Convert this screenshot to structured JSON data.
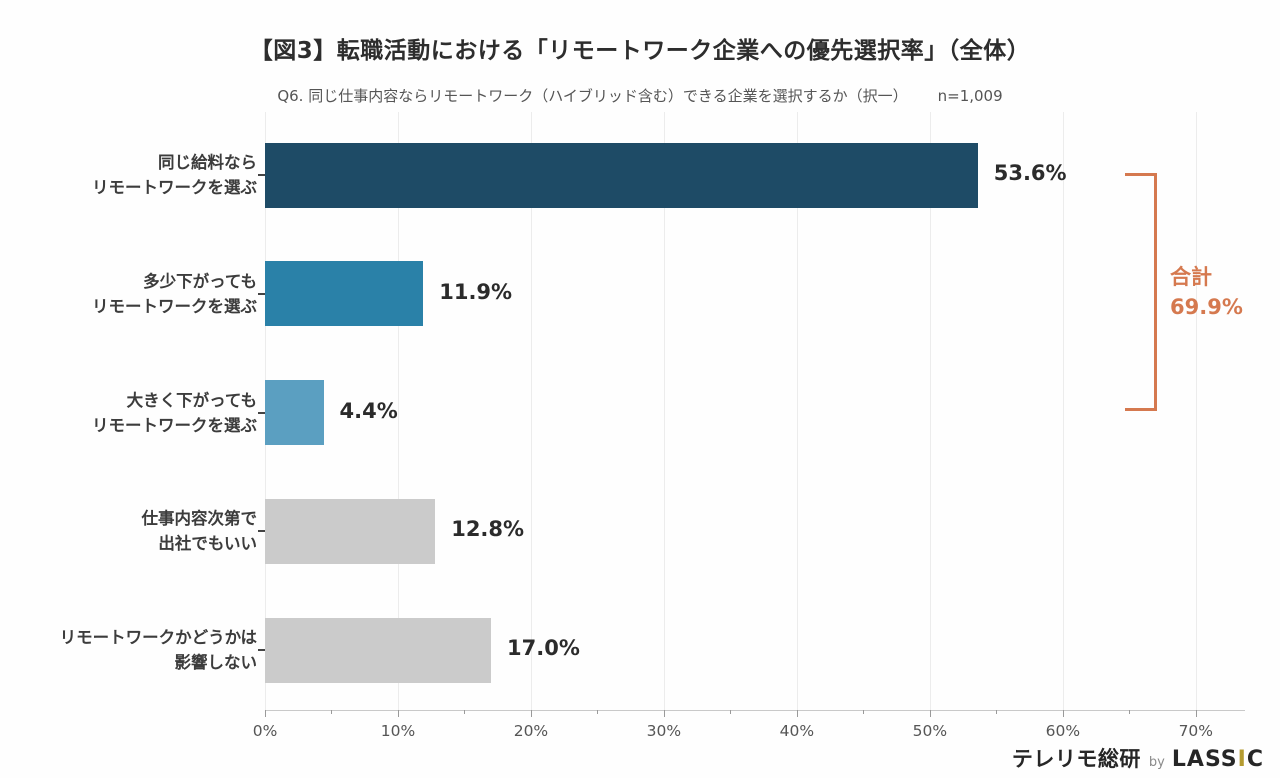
{
  "header": {
    "title": "【図3】転職活動における「リモートワーク企業への優先選択率」（全体）",
    "subtitle": "Q6. 同じ仕事内容ならリモートワーク（ハイブリッド含む）できる企業を選択するか（択一）",
    "sample_size": "n=1,009"
  },
  "chart_data": {
    "type": "bar",
    "orientation": "horizontal",
    "categories": [
      [
        "同じ給料なら",
        "リモートワークを選ぶ"
      ],
      [
        "多少下がっても",
        "リモートワークを選ぶ"
      ],
      [
        "大きく下がっても",
        "リモートワークを選ぶ"
      ],
      [
        "仕事内容次第で",
        "出社でもいい"
      ],
      [
        "リモートワークかどうかは",
        "影響しない"
      ]
    ],
    "values": [
      53.6,
      11.9,
      4.4,
      12.8,
      17.0
    ],
    "value_labels": [
      "53.6%",
      "11.9%",
      "4.4%",
      "12.8%",
      "17.0%"
    ],
    "bar_colors": [
      "#1e4b66",
      "#2a81a8",
      "#5b9fc1",
      "#cbcbcb",
      "#cbcbcb"
    ],
    "xlim": [
      0,
      73.7
    ],
    "x_tick_values": [
      0,
      10,
      20,
      30,
      40,
      50,
      60,
      70
    ],
    "x_tick_labels": [
      "0%",
      "10%",
      "20%",
      "30%",
      "40%",
      "50%",
      "60%",
      "70%"
    ],
    "grid": true,
    "legend": "none",
    "annotation": {
      "label": "合計",
      "value": "69.9%",
      "color": "#d5794f",
      "grouped_bar_indices": [
        0,
        1,
        2
      ]
    }
  },
  "footer": {
    "brand_jp": "テレリモ総研",
    "brand_by": "by",
    "brand_en": "LASSIC",
    "brand_accent_index": 4,
    "brand_accent_color": "#b49b30"
  }
}
